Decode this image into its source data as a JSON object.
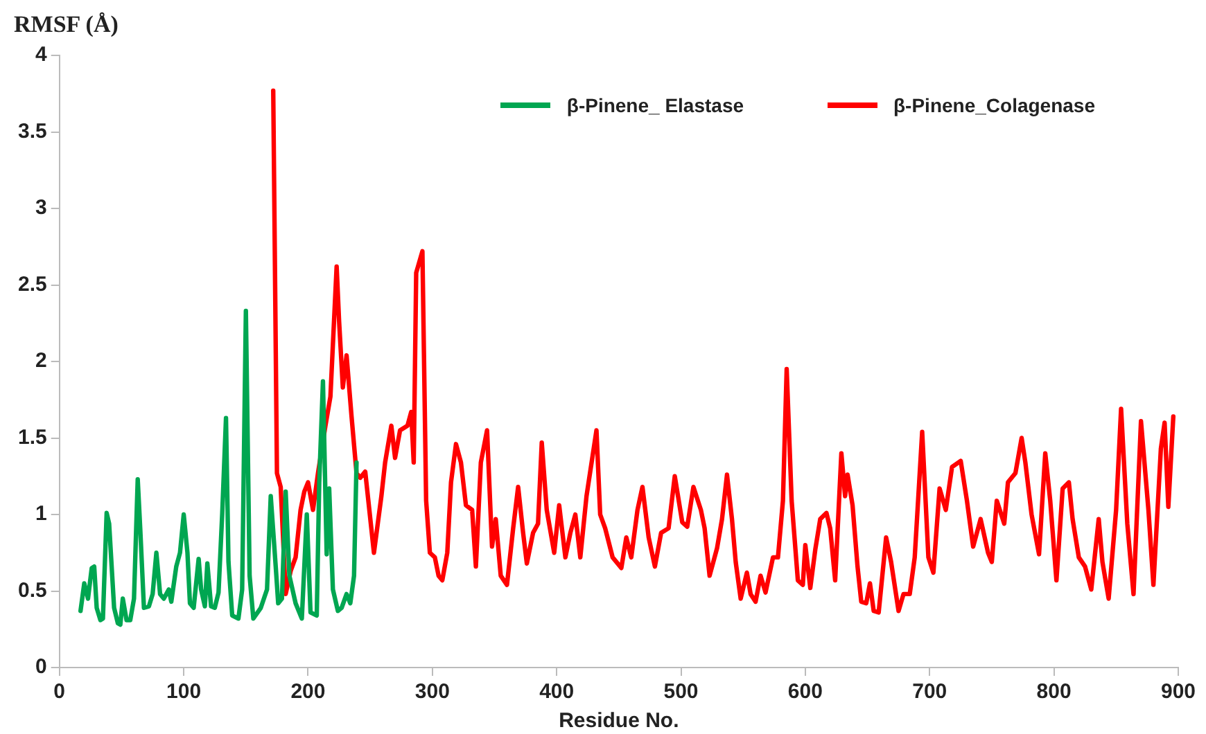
{
  "chart_data": {
    "type": "line",
    "xlabel": "Residue No.",
    "ylabel": "RMSF (Å)",
    "xlim": [
      0,
      900
    ],
    "xticks": [
      0,
      100,
      200,
      300,
      400,
      500,
      600,
      700,
      800,
      900
    ],
    "ylim": [
      0,
      4
    ],
    "yticks": [
      0,
      0.5,
      1,
      1.5,
      2,
      2.5,
      3,
      3.5,
      4
    ],
    "grid": false,
    "legend": "top right",
    "marker": "none",
    "line_style": "solid",
    "series": [
      {
        "name": "β-Pinene_ Elastase",
        "color": "#00a651",
        "x": [
          17,
          20,
          23,
          26,
          28,
          30,
          33,
          35,
          38,
          40,
          44,
          47,
          49,
          51,
          54,
          57,
          60,
          63,
          65,
          68,
          72,
          75,
          78,
          81,
          84,
          88,
          90,
          94,
          97,
          100,
          103,
          105,
          108,
          112,
          114,
          117,
          119,
          122,
          125,
          128,
          131,
          134,
          136,
          139,
          144,
          147,
          150,
          153,
          156,
          162,
          167,
          170,
          174,
          176,
          179,
          182,
          185,
          190,
          195,
          199,
          202,
          207,
          209,
          212,
          215,
          217,
          220,
          224,
          227,
          231,
          234,
          237,
          239
        ],
        "values": [
          0.37,
          0.55,
          0.45,
          0.65,
          0.66,
          0.39,
          0.31,
          0.32,
          1.01,
          0.94,
          0.39,
          0.29,
          0.28,
          0.45,
          0.31,
          0.31,
          0.45,
          1.23,
          0.91,
          0.39,
          0.4,
          0.48,
          0.75,
          0.48,
          0.45,
          0.51,
          0.43,
          0.66,
          0.75,
          1.0,
          0.75,
          0.42,
          0.39,
          0.71,
          0.51,
          0.4,
          0.68,
          0.4,
          0.39,
          0.49,
          1.01,
          1.63,
          0.69,
          0.34,
          0.32,
          0.51,
          2.33,
          0.6,
          0.32,
          0.39,
          0.51,
          1.12,
          0.66,
          0.42,
          0.45,
          1.15,
          0.6,
          0.42,
          0.32,
          1.0,
          0.36,
          0.34,
          1.21,
          1.87,
          0.74,
          1.17,
          0.51,
          0.37,
          0.39,
          0.48,
          0.42,
          0.6,
          1.34
        ]
      },
      {
        "name": "β-Pinene_Colagenase",
        "color": "#ff0000",
        "x": [
          172,
          175,
          178,
          182,
          186,
          190,
          194,
          197,
          200,
          204,
          208,
          214,
          218,
          223,
          225,
          228,
          231,
          235,
          239,
          242,
          246,
          253,
          259,
          262,
          267,
          270,
          274,
          280,
          283,
          285,
          287,
          292,
          295,
          298,
          302,
          305,
          308,
          312,
          315,
          319,
          323,
          327,
          332,
          335,
          339,
          344,
          348,
          351,
          355,
          360,
          365,
          369,
          373,
          376,
          381,
          385,
          388,
          392,
          398,
          402,
          407,
          411,
          415,
          419,
          424,
          432,
          435,
          439,
          445,
          452,
          456,
          460,
          465,
          469,
          474,
          479,
          484,
          490,
          495,
          501,
          505,
          510,
          516,
          519,
          523,
          529,
          533,
          537,
          541,
          544,
          548,
          553,
          556,
          560,
          564,
          568,
          574,
          578,
          582,
          585,
          589,
          594,
          598,
          600,
          604,
          608,
          612,
          617,
          620,
          624,
          629,
          632,
          634,
          638,
          642,
          645,
          649,
          652,
          655,
          659,
          665,
          669,
          675,
          679,
          684,
          688,
          694,
          699,
          703,
          708,
          713,
          718,
          725,
          730,
          735,
          741,
          747,
          750,
          754,
          760,
          763,
          769,
          774,
          777,
          782,
          788,
          793,
          797,
          802,
          807,
          812,
          815,
          820,
          825,
          830,
          836,
          839,
          844,
          850,
          854,
          859,
          864,
          870,
          876,
          880,
          886,
          889,
          892,
          896
        ],
        "values": [
          3.77,
          1.27,
          1.18,
          0.48,
          0.63,
          0.72,
          1.03,
          1.15,
          1.21,
          1.03,
          1.27,
          1.58,
          1.77,
          2.62,
          2.26,
          1.83,
          2.04,
          1.64,
          1.27,
          1.24,
          1.28,
          0.75,
          1.12,
          1.34,
          1.58,
          1.37,
          1.55,
          1.58,
          1.67,
          1.34,
          2.58,
          2.72,
          1.09,
          0.75,
          0.72,
          0.6,
          0.57,
          0.75,
          1.21,
          1.46,
          1.34,
          1.06,
          1.03,
          0.66,
          1.34,
          1.55,
          0.79,
          0.97,
          0.6,
          0.54,
          0.91,
          1.18,
          0.88,
          0.68,
          0.88,
          0.94,
          1.47,
          1.03,
          0.75,
          1.06,
          0.72,
          0.88,
          1.0,
          0.72,
          1.12,
          1.55,
          1.0,
          0.91,
          0.72,
          0.65,
          0.85,
          0.72,
          1.03,
          1.18,
          0.85,
          0.66,
          0.88,
          0.91,
          1.25,
          0.95,
          0.92,
          1.18,
          1.03,
          0.91,
          0.6,
          0.78,
          0.97,
          1.26,
          0.97,
          0.69,
          0.45,
          0.62,
          0.48,
          0.43,
          0.6,
          0.49,
          0.72,
          0.72,
          1.09,
          1.95,
          1.09,
          0.57,
          0.54,
          0.8,
          0.52,
          0.77,
          0.97,
          1.01,
          0.91,
          0.57,
          1.4,
          1.12,
          1.26,
          1.06,
          0.66,
          0.43,
          0.42,
          0.55,
          0.37,
          0.36,
          0.85,
          0.69,
          0.37,
          0.48,
          0.48,
          0.72,
          1.54,
          0.72,
          0.62,
          1.17,
          1.03,
          1.31,
          1.35,
          1.09,
          0.79,
          0.97,
          0.75,
          0.69,
          1.09,
          0.94,
          1.21,
          1.27,
          1.5,
          1.34,
          1.0,
          0.74,
          1.4,
          1.09,
          0.57,
          1.17,
          1.21,
          0.97,
          0.72,
          0.66,
          0.51,
          0.97,
          0.69,
          0.45,
          1.03,
          1.69,
          0.94,
          0.48,
          1.61,
          1.03,
          0.54,
          1.43,
          1.6,
          1.05,
          1.64
        ]
      }
    ]
  }
}
